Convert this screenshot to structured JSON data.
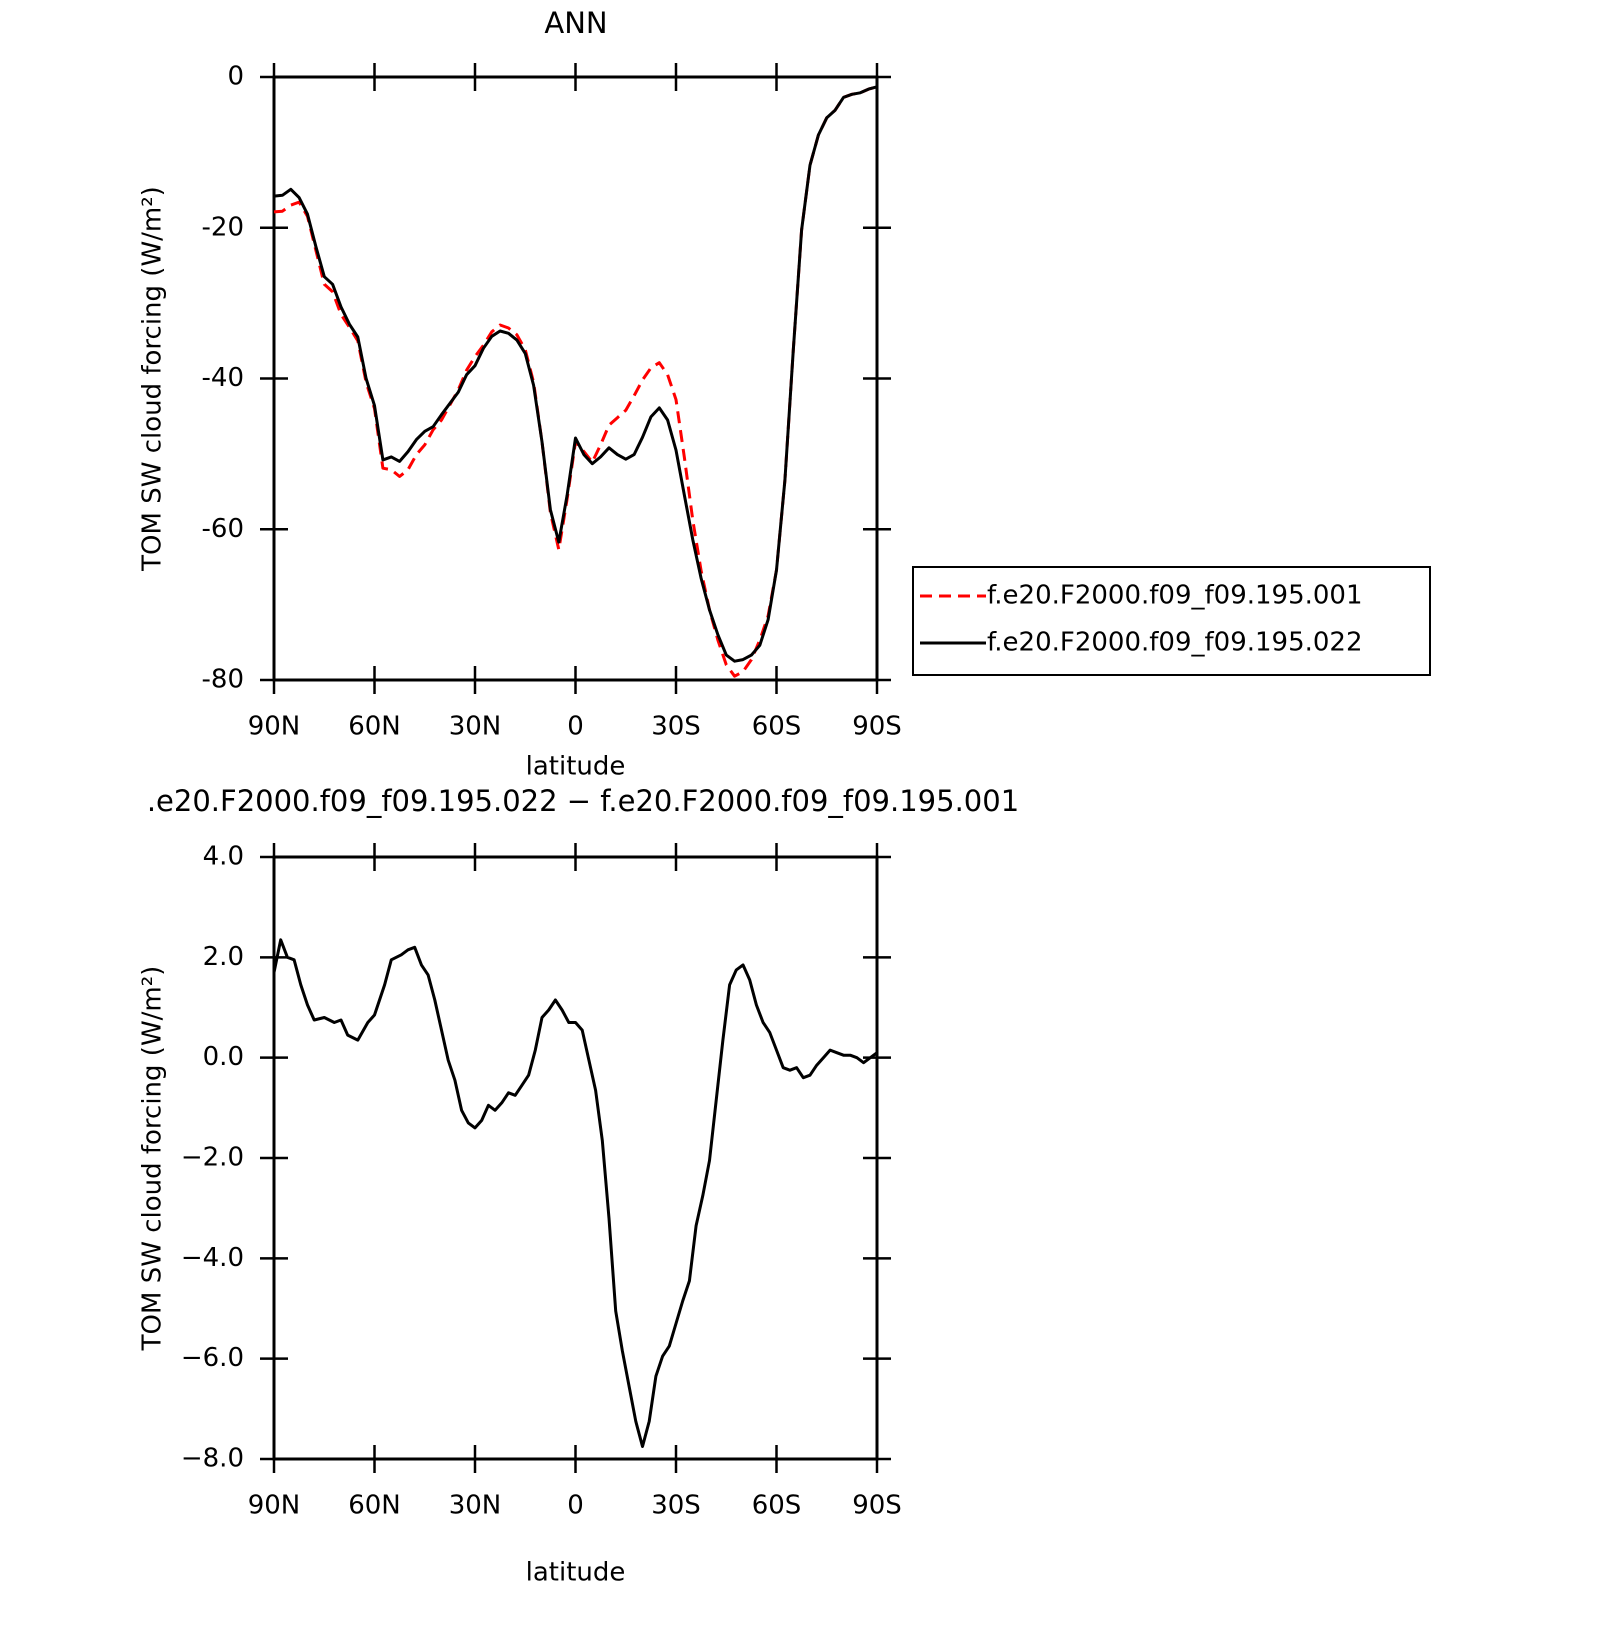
{
  "chart_data": [
    {
      "type": "line",
      "title": "ANN",
      "xlabel": "latitude",
      "ylabel": "TOM SW cloud forcing (W/m²)",
      "x": [
        90,
        87.5,
        85,
        82.5,
        80,
        77.5,
        75,
        72.5,
        70,
        67.5,
        65,
        62.5,
        60,
        57.5,
        55,
        52.5,
        50,
        47.5,
        45,
        42.5,
        40,
        37.5,
        35,
        32.5,
        30,
        27.5,
        25,
        22.5,
        20,
        17.5,
        15,
        12.5,
        10,
        7.5,
        5,
        2.5,
        0,
        -2.5,
        -5,
        -7.5,
        -10,
        -12.5,
        -15,
        -17.5,
        -20,
        -22.5,
        -25,
        -27.5,
        -30,
        -32.5,
        -35,
        -37.5,
        -40,
        -42.5,
        -45,
        -47.5,
        -50,
        -52.5,
        -55,
        -57.5,
        -60,
        -62.5,
        -65,
        -67.5,
        -70,
        -72.5,
        -75,
        -77.5,
        -80,
        -82.5,
        -85,
        -87.5,
        -90
      ],
      "series": [
        {
          "name": "f.e20.F2000.f09_f09.195.001",
          "color": "#ff0000",
          "dash": true,
          "values": [
            -17.9,
            -17.8,
            -17,
            -16.6,
            -18.5,
            -23,
            -27.5,
            -28.5,
            -31.5,
            -33.2,
            -35,
            -40.5,
            -44,
            -51.9,
            -52.1,
            -53,
            -52.1,
            -50.1,
            -48.8,
            -46.8,
            -45.5,
            -43.5,
            -41.5,
            -38.9,
            -37.1,
            -35.6,
            -33.8,
            -32.9,
            -33.3,
            -34.2,
            -36.2,
            -40.5,
            -48.4,
            -57.8,
            -62.7,
            -56,
            -48.4,
            -49.7,
            -51.1,
            -48.8,
            -46.2,
            -45.2,
            -44.2,
            -42.3,
            -40.2,
            -38.6,
            -37.9,
            -39.5,
            -42.8,
            -50.5,
            -58.8,
            -65.5,
            -70.7,
            -74.7,
            -78,
            -79.5,
            -78.9,
            -77.3,
            -74.7,
            -71.5,
            -65.4,
            -53.5,
            -36.2,
            -20.3,
            -11.7,
            -7.7,
            -5.4,
            -4.4,
            -2.7,
            -2.3,
            -2.1,
            -1.6,
            -1.3
          ]
        },
        {
          "name": "f.e20.F2000.f09_f09.195.022",
          "color": "#000000",
          "dash": false,
          "values": [
            -15.8,
            -15.7,
            -14.9,
            -16,
            -18.2,
            -22.5,
            -26.5,
            -27.5,
            -30.5,
            -32.8,
            -34.5,
            -40,
            -43.6,
            -50.8,
            -50.4,
            -51,
            -49.7,
            -48.1,
            -47,
            -46.4,
            -44.8,
            -43.3,
            -41.8,
            -39.5,
            -38.3,
            -36,
            -34.4,
            -33.7,
            -34,
            -34.9,
            -36.7,
            -40.9,
            -48.4,
            -57.4,
            -61.7,
            -55.5,
            -47.9,
            -50.1,
            -51.3,
            -50.4,
            -49.2,
            -50.1,
            -50.7,
            -50.1,
            -47.8,
            -45.1,
            -43.9,
            -45.5,
            -49.5,
            -55.5,
            -61.4,
            -66.5,
            -70.7,
            -74,
            -76.7,
            -77.5,
            -77.3,
            -76.7,
            -75.4,
            -72,
            -65.4,
            -53.5,
            -36.2,
            -20.3,
            -11.7,
            -7.7,
            -5.4,
            -4.4,
            -2.7,
            -2.3,
            -2.1,
            -1.6,
            -1.3
          ]
        }
      ],
      "xlim": [
        90,
        -90
      ],
      "xticks": [
        {
          "value": 90,
          "label": "90N"
        },
        {
          "value": 60,
          "label": "60N"
        },
        {
          "value": 30,
          "label": "30N"
        },
        0,
        {
          "value": -30,
          "label": "30S"
        },
        {
          "value": -60,
          "label": "60S"
        },
        {
          "value": -90,
          "label": "90S"
        }
      ],
      "ylim": [
        -80,
        0
      ],
      "yticks": [
        0,
        -20,
        -40,
        -60,
        -80
      ],
      "legend": "right"
    },
    {
      "type": "line",
      "title": ".e20.F2000.f09_f09.195.022 − f.e20.F2000.f09_f09.195.001",
      "xlabel": "latitude",
      "ylabel": "TOM SW cloud forcing (W/m²)",
      "x": [
        90,
        88,
        86,
        84,
        82,
        80,
        78,
        75,
        72,
        70,
        68,
        65,
        62,
        60,
        57,
        55,
        52,
        50,
        48,
        46,
        44,
        42,
        40,
        38,
        36,
        34,
        32,
        30,
        28,
        26,
        24,
        22,
        20,
        18,
        16,
        14,
        12,
        10,
        8,
        6,
        4,
        2,
        0,
        -2,
        -4,
        -6,
        -8,
        -10,
        -12,
        -14,
        -16,
        -18,
        -20,
        -22,
        -24,
        -26,
        -28,
        -30,
        -32,
        -34,
        -36,
        -38,
        -40,
        -42,
        -44,
        -46,
        -48,
        -50,
        -52,
        -54,
        -56,
        -58,
        -60,
        -62,
        -64,
        -66,
        -68,
        -70,
        -72,
        -74,
        -76,
        -78,
        -80,
        -82,
        -84,
        -86,
        -88,
        -90
      ],
      "values": [
        1.7,
        2.35,
        2.0,
        1.95,
        1.45,
        1.05,
        0.75,
        0.8,
        0.7,
        0.75,
        0.45,
        0.35,
        0.7,
        0.85,
        1.45,
        1.95,
        2.05,
        2.15,
        2.2,
        1.85,
        1.65,
        1.15,
        0.55,
        -0.05,
        -0.45,
        -1.05,
        -1.3,
        -1.4,
        -1.25,
        -0.95,
        -1.05,
        -0.9,
        -0.7,
        -0.75,
        -0.55,
        -0.35,
        0.15,
        0.8,
        0.95,
        1.15,
        0.95,
        0.7,
        0.7,
        0.55,
        -0.05,
        -0.65,
        -1.65,
        -3.2,
        -5.05,
        -5.85,
        -6.55,
        -7.25,
        -7.75,
        -7.25,
        -6.35,
        -5.95,
        -5.75,
        -5.3,
        -4.85,
        -4.45,
        -3.35,
        -2.75,
        -2.05,
        -0.85,
        0.35,
        1.45,
        1.75,
        1.85,
        1.55,
        1.05,
        0.7,
        0.5,
        0.15,
        -0.2,
        -0.25,
        -0.2,
        -0.4,
        -0.35,
        -0.15,
        0,
        0.15,
        0.1,
        0.05,
        0.05,
        0,
        -0.1,
        0,
        0.1
      ],
      "color": "#000000",
      "xlim": [
        90,
        -90
      ],
      "xticks": [
        {
          "value": 90,
          "label": "90N"
        },
        {
          "value": 60,
          "label": "60N"
        },
        {
          "value": 30,
          "label": "30N"
        },
        0,
        {
          "value": -30,
          "label": "30S"
        },
        {
          "value": -60,
          "label": "60S"
        },
        {
          "value": -90,
          "label": "90S"
        }
      ],
      "ylim": [
        -8,
        4
      ],
      "yticks": [
        {
          "value": 4,
          "label": "4.0"
        },
        {
          "value": 2,
          "label": "2.0"
        },
        {
          "value": 0,
          "label": "0.0"
        },
        {
          "value": -2,
          "label": "−2.0"
        },
        {
          "value": -4,
          "label": "−4.0"
        },
        {
          "value": -6,
          "label": "−6.0"
        },
        {
          "value": -8,
          "label": "−8.0"
        }
      ]
    }
  ]
}
